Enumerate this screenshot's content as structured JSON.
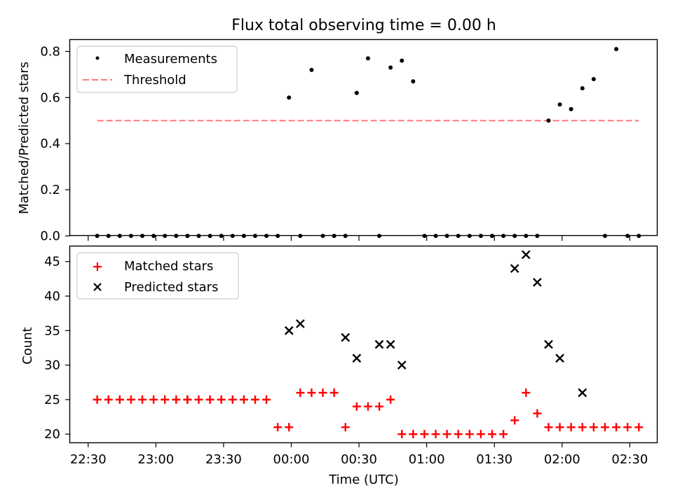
{
  "figure": {
    "title": "Flux total observing time = 0.00 h",
    "xlabel": "Time (UTC)"
  },
  "chart_data": [
    {
      "type": "scatter",
      "ylabel": "Matched/Predicted stars",
      "xlim": [
        "22:22",
        "02:42"
      ],
      "ylim": [
        0,
        0.85
      ],
      "yticks": [
        0.0,
        0.2,
        0.4,
        0.6,
        0.8
      ],
      "legend_position": "upper-left",
      "series": [
        {
          "name": "Measurements",
          "marker": "dot",
          "color": "#000000",
          "x": [
            "22:34",
            "22:39",
            "22:44",
            "22:49",
            "22:54",
            "22:59",
            "23:04",
            "23:09",
            "23:14",
            "23:14",
            "23:19",
            "23:24",
            "23:29",
            "23:34",
            "23:39",
            "23:44",
            "23:49",
            "23:54",
            "23:59",
            "00:04",
            "00:09",
            "00:14",
            "00:19",
            "00:24",
            "00:29",
            "00:34",
            "00:39",
            "00:44",
            "00:49",
            "00:54",
            "00:59",
            "01:04",
            "01:09",
            "01:14",
            "01:19",
            "01:24",
            "01:29",
            "01:34",
            "01:39",
            "01:44",
            "01:49",
            "01:54",
            "01:59",
            "02:04",
            "02:09",
            "02:14",
            "02:19",
            "02:24",
            "02:29",
            "02:34"
          ],
          "y": [
            0,
            0,
            0,
            0,
            0,
            0,
            0,
            0,
            0,
            0,
            0,
            0,
            0,
            0,
            0,
            0,
            0,
            0,
            0.6,
            0,
            0.72,
            0,
            0,
            0,
            0.62,
            0.77,
            0,
            0.73,
            0.76,
            0.67,
            0,
            0,
            0,
            0,
            0,
            0,
            0,
            0,
            0,
            0,
            0,
            0.5,
            0.57,
            0.55,
            0.64,
            0.68,
            0,
            0.81,
            0,
            0
          ]
        },
        {
          "name": "Threshold",
          "line_style": "dashed",
          "color": "#ff7f7f",
          "x": [
            "22:34",
            "02:34"
          ],
          "y": [
            0.5,
            0.5
          ]
        }
      ]
    },
    {
      "type": "scatter",
      "ylabel": "Count",
      "xlim": [
        "22:22",
        "02:42"
      ],
      "ylim": [
        18.8,
        47.2
      ],
      "yticks": [
        20,
        25,
        30,
        35,
        40,
        45
      ],
      "xticks": [
        "22:30",
        "23:00",
        "23:30",
        "00:00",
        "00:30",
        "01:00",
        "01:30",
        "02:00",
        "02:30"
      ],
      "legend_position": "upper-left",
      "series": [
        {
          "name": "Matched stars",
          "marker": "plus",
          "color": "#ff0000",
          "x": [
            "22:34",
            "22:39",
            "22:44",
            "22:49",
            "22:54",
            "22:59",
            "23:04",
            "23:09",
            "23:14",
            "23:14",
            "23:19",
            "23:24",
            "23:29",
            "23:34",
            "23:39",
            "23:44",
            "23:49",
            "23:54",
            "23:59",
            "00:04",
            "00:09",
            "00:14",
            "00:19",
            "00:24",
            "00:29",
            "00:34",
            "00:39",
            "00:44",
            "00:49",
            "00:54",
            "00:59",
            "01:04",
            "01:09",
            "01:14",
            "01:19",
            "01:24",
            "01:29",
            "01:34",
            "01:39",
            "01:44",
            "01:49",
            "01:54",
            "01:59",
            "02:04",
            "02:09",
            "02:14",
            "02:19",
            "02:24",
            "02:29",
            "02:34"
          ],
          "y": [
            25,
            25,
            25,
            25,
            25,
            25,
            25,
            25,
            25,
            25,
            25,
            25,
            25,
            25,
            25,
            25,
            25,
            21,
            21,
            26,
            26,
            26,
            26,
            21,
            24,
            24,
            24,
            25,
            20,
            20,
            20,
            20,
            20,
            20,
            20,
            20,
            20,
            20,
            22,
            26,
            23,
            21,
            21,
            21,
            21,
            21,
            21,
            21,
            21,
            21
          ]
        },
        {
          "name": "Predicted stars",
          "marker": "x",
          "color": "#000000",
          "x": [
            "23:59",
            "00:04",
            "00:24",
            "00:29",
            "00:39",
            "00:44",
            "00:49",
            "01:39",
            "01:44",
            "01:49",
            "01:54",
            "01:59",
            "02:09"
          ],
          "y": [
            35,
            36,
            34,
            31,
            33,
            33,
            30,
            44,
            46,
            42,
            33,
            31,
            26
          ]
        }
      ]
    }
  ]
}
